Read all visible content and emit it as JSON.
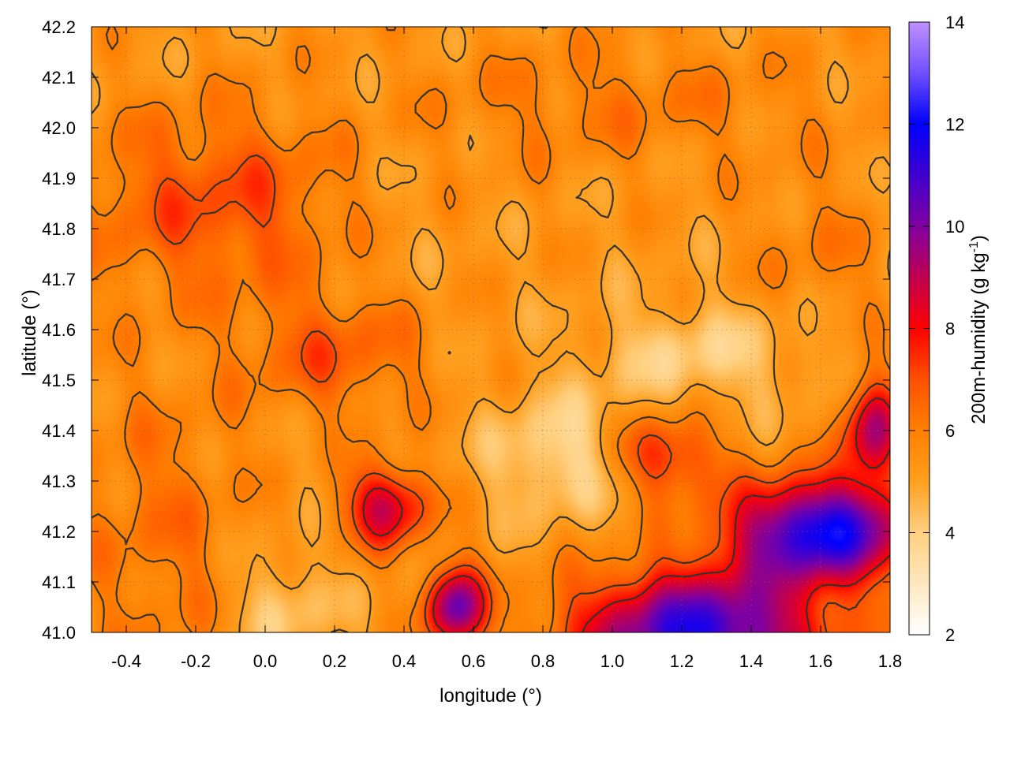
{
  "chart_data": {
    "type": "heatmap",
    "title": "",
    "xlabel": "longitude (°)",
    "ylabel": "latitude (°)",
    "xlim": [
      -0.5,
      1.8
    ],
    "ylim": [
      41.0,
      42.2
    ],
    "xticks": [
      {
        "value": -0.4,
        "label": "-0.4"
      },
      {
        "value": -0.2,
        "label": "-0.2"
      },
      {
        "value": 0.0,
        "label": "0.0"
      },
      {
        "value": 0.2,
        "label": "0.2"
      },
      {
        "value": 0.4,
        "label": "0.4"
      },
      {
        "value": 0.6,
        "label": "0.6"
      },
      {
        "value": 0.8,
        "label": "0.8"
      },
      {
        "value": 1.0,
        "label": "1.0"
      },
      {
        "value": 1.2,
        "label": "1.2"
      },
      {
        "value": 1.4,
        "label": "1.4"
      },
      {
        "value": 1.6,
        "label": "1.6"
      },
      {
        "value": 1.8,
        "label": "1.8"
      }
    ],
    "yticks": [
      {
        "value": 41.0,
        "label": "41.0"
      },
      {
        "value": 41.1,
        "label": "41.1"
      },
      {
        "value": 41.2,
        "label": "41.2"
      },
      {
        "value": 41.3,
        "label": "41.3"
      },
      {
        "value": 41.4,
        "label": "41.4"
      },
      {
        "value": 41.5,
        "label": "41.5"
      },
      {
        "value": 41.6,
        "label": "41.6"
      },
      {
        "value": 41.7,
        "label": "41.7"
      },
      {
        "value": 41.8,
        "label": "41.8"
      },
      {
        "value": 41.9,
        "label": "41.9"
      },
      {
        "value": 42.0,
        "label": "42.0"
      },
      {
        "value": 42.1,
        "label": "42.1"
      },
      {
        "value": 42.2,
        "label": "42.2"
      }
    ],
    "grid": true,
    "colorbar": {
      "label": "200m-humidity (g kg",
      "label_superscript": "-1",
      "label_close": ")",
      "range": [
        2,
        14
      ],
      "ticks": [
        {
          "value": 2,
          "label": "2"
        },
        {
          "value": 4,
          "label": "4"
        },
        {
          "value": 6,
          "label": "6"
        },
        {
          "value": 8,
          "label": "8"
        },
        {
          "value": 10,
          "label": "10"
        },
        {
          "value": 12,
          "label": "12"
        },
        {
          "value": 14,
          "label": "14"
        }
      ],
      "stops": [
        {
          "value": 2,
          "color": "#ffffff"
        },
        {
          "value": 4,
          "color": "#ffd080"
        },
        {
          "value": 5,
          "color": "#ffa020"
        },
        {
          "value": 6,
          "color": "#ff8000"
        },
        {
          "value": 7,
          "color": "#ff5000"
        },
        {
          "value": 8,
          "color": "#ff0000"
        },
        {
          "value": 9,
          "color": "#c00050"
        },
        {
          "value": 10,
          "color": "#8000a0"
        },
        {
          "value": 12,
          "color": "#0000ff"
        },
        {
          "value": 13,
          "color": "#7050ff"
        },
        {
          "value": 14,
          "color": "#c090ff"
        }
      ]
    },
    "humidity_field": {
      "base": 5.3,
      "features": [
        {
          "lon": -0.1,
          "lat": 41.85,
          "sx": 0.45,
          "sy": 0.18,
          "amp": 1.8
        },
        {
          "lon": 0.2,
          "lat": 41.55,
          "sx": 0.25,
          "sy": 0.12,
          "amp": 1.5
        },
        {
          "lon": -0.3,
          "lat": 41.2,
          "sx": 0.25,
          "sy": 0.3,
          "amp": 1.0
        },
        {
          "lon": 0.35,
          "lat": 41.25,
          "sx": 0.12,
          "sy": 0.08,
          "amp": 3.5
        },
        {
          "lon": 0.55,
          "lat": 41.05,
          "sx": 0.08,
          "sy": 0.08,
          "amp": 5.0
        },
        {
          "lon": 1.25,
          "lat": 41.0,
          "sx": 0.35,
          "sy": 0.12,
          "amp": 6.0
        },
        {
          "lon": 1.6,
          "lat": 41.2,
          "sx": 0.25,
          "sy": 0.1,
          "amp": 6.5
        },
        {
          "lon": 1.75,
          "lat": 41.4,
          "sx": 0.08,
          "sy": 0.1,
          "amp": 4.0
        },
        {
          "lon": 1.15,
          "lat": 41.35,
          "sx": 0.15,
          "sy": 0.08,
          "amp": 2.5
        },
        {
          "lon": 0.85,
          "lat": 41.35,
          "sx": 0.2,
          "sy": 0.12,
          "amp": -1.6
        },
        {
          "lon": 1.25,
          "lat": 41.55,
          "sx": 0.3,
          "sy": 0.1,
          "amp": -1.3
        },
        {
          "lon": 0.3,
          "lat": 41.85,
          "sx": 0.25,
          "sy": 0.2,
          "amp": -0.6
        },
        {
          "lon": 0.05,
          "lat": 41.05,
          "sx": 0.15,
          "sy": 0.1,
          "amp": -1.2
        },
        {
          "lon": 1.0,
          "lat": 42.05,
          "sx": 0.6,
          "sy": 0.12,
          "amp": 0.8
        },
        {
          "lon": 1.6,
          "lat": 41.75,
          "sx": 0.2,
          "sy": 0.15,
          "amp": 0.7
        }
      ],
      "contour_levels": [
        5,
        6,
        7,
        8
      ]
    }
  }
}
